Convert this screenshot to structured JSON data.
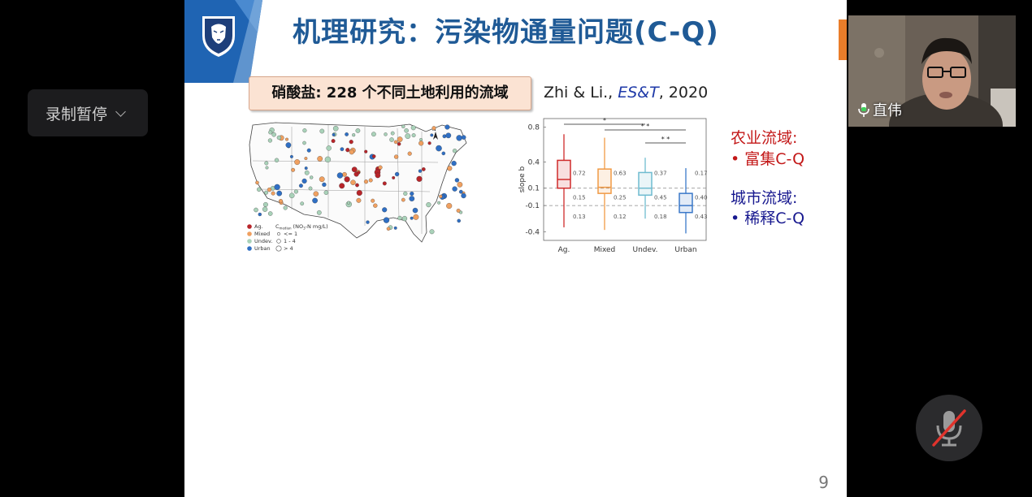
{
  "recording": {
    "pause_label": "录制暂停"
  },
  "slide": {
    "title": "机理研究：污染物通量问题(C-Q)",
    "tag": "硝酸盐: 228 个不同土地利用的流域",
    "citation_prefix": "Zhi & Li., ",
    "citation_journal": "ES&T",
    "citation_year": ", 2020",
    "notes": {
      "ag_title": "农业流域:",
      "ag_point": "•  富集C-Q",
      "urban_title": "城市流域:",
      "urban_point": "•  稀释C-Q"
    },
    "page_number": "9"
  },
  "map_legend": {
    "landuse": [
      "Ag.",
      "Mixed",
      "Undev.",
      "Urban"
    ],
    "conc_title": "C",
    "conc_sub": "median",
    "conc_unit": "(NO",
    "conc_unit_sub": "3",
    "conc_unit_rest": "-N mg/L)",
    "conc_bins": [
      "<= 1",
      "1 - 4",
      "> 4"
    ]
  },
  "chart_data": {
    "type": "box",
    "ylabel": "slope b",
    "categories": [
      "Ag.",
      "Mixed",
      "Undev.",
      "Urban"
    ],
    "yticks": [
      "0.8",
      "0.4",
      "0.1",
      "-0.1",
      "-0.4"
    ],
    "ylim": [
      -0.5,
      0.9
    ],
    "reference_lines": [
      0.1,
      -0.1
    ],
    "colors": [
      "#cf2b2b",
      "#f09a45",
      "#6fbcd0",
      "#3a78c9"
    ],
    "boxes": [
      {
        "name": "Ag.",
        "min": -0.35,
        "q1": 0.1,
        "median": 0.2,
        "q3": 0.42,
        "max": 0.72
      },
      {
        "name": "Mixed",
        "min": -0.38,
        "q1": 0.04,
        "median": 0.11,
        "q3": 0.32,
        "max": 0.68
      },
      {
        "name": "Undev.",
        "min": -0.25,
        "q1": 0.02,
        "median": 0.1,
        "q3": 0.28,
        "max": 0.45
      },
      {
        "name": "Urban",
        "min": -0.42,
        "q1": -0.18,
        "median": -0.1,
        "q3": 0.04,
        "max": 0.33
      }
    ],
    "fractions": [
      [
        "0.72",
        "0.15",
        "0.13"
      ],
      [
        "0.63",
        "0.25",
        "0.12"
      ],
      [
        "0.37",
        "0.45",
        "0.18"
      ],
      [
        "0.17",
        "0.40",
        "0.43"
      ]
    ],
    "significance": [
      {
        "from": "Ag.",
        "to": "Undev.",
        "label": "*"
      },
      {
        "from": "Mixed",
        "to": "Urban",
        "label": "* *"
      },
      {
        "from": "Undev.",
        "to": "Urban",
        "label": "* *"
      }
    ]
  },
  "webcam": {
    "name": "直伟"
  }
}
